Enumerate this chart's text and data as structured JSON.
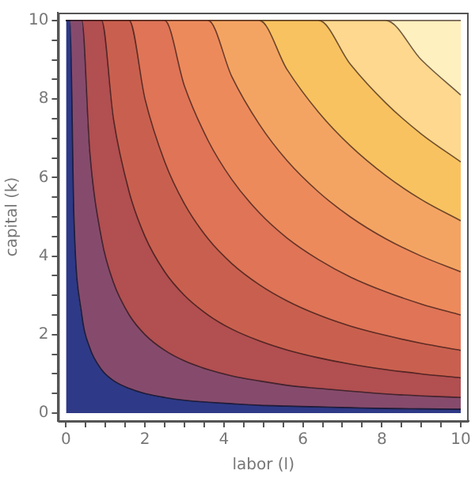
{
  "chart_data": {
    "type": "area",
    "stacked": true,
    "xlabel": "labor (l)",
    "ylabel": "capital (k)",
    "xlim": [
      -0.2,
      10.2
    ],
    "ylim": [
      -0.2,
      10.2
    ],
    "xticks": [
      0,
      {
        "value": 0.5,
        "label": null
      },
      {
        "value": 1,
        "label": null
      },
      {
        "value": 1.5,
        "label": null
      },
      2,
      {
        "value": 2.5,
        "label": null
      },
      {
        "value": 3,
        "label": null
      },
      {
        "value": 3.5,
        "label": null
      },
      4,
      {
        "value": 4.5,
        "label": null
      },
      {
        "value": 5,
        "label": null
      },
      {
        "value": 5.5,
        "label": null
      },
      6,
      {
        "value": 6.5,
        "label": null
      },
      {
        "value": 7,
        "label": null
      },
      {
        "value": 7.5,
        "label": null
      },
      8,
      {
        "value": 8.5,
        "label": null
      },
      {
        "value": 9,
        "label": null
      },
      {
        "value": 9.5,
        "label": null
      },
      10
    ],
    "yticks": [
      0,
      {
        "value": 0.5,
        "label": null
      },
      {
        "value": 1,
        "label": null
      },
      {
        "value": 1.5,
        "label": null
      },
      2,
      {
        "value": 2.5,
        "label": null
      },
      {
        "value": 3,
        "label": null
      },
      {
        "value": 3.5,
        "label": null
      },
      4,
      {
        "value": 4.5,
        "label": null
      },
      {
        "value": 5,
        "label": null
      },
      {
        "value": 5.5,
        "label": null
      },
      6,
      {
        "value": 6.5,
        "label": null
      },
      {
        "value": 7,
        "label": null
      },
      {
        "value": 7.5,
        "label": null
      },
      8,
      {
        "value": 8.5,
        "label": null
      },
      {
        "value": 9,
        "label": null
      },
      {
        "value": 9.5,
        "label": null
      },
      10
    ],
    "x": [
      0,
      0.1,
      0.2,
      0.4,
      0.6,
      0.9,
      1.2,
      1.6,
      2,
      2.5,
      3,
      3.6,
      4.2,
      4.9,
      5.6,
      6.4,
      7.2,
      8.1,
      9,
      10
    ],
    "series": [
      {
        "color": "#2e3a87",
        "values": [
          10,
          10,
          5,
          2.5,
          1.67,
          1.11,
          0.83,
          0.63,
          0.5,
          0.4,
          0.33,
          0.28,
          0.24,
          0.2,
          0.18,
          0.16,
          0.14,
          0.12,
          0.11,
          0.1
        ]
      },
      {
        "color": "#864b6c",
        "values": [
          0,
          0,
          5,
          7.5,
          5,
          3.33,
          2.5,
          1.87,
          1.5,
          1.2,
          1,
          0.83,
          0.71,
          0.62,
          0.53,
          0.47,
          0.42,
          0.37,
          0.33,
          0.3
        ]
      },
      {
        "color": "#b14f51",
        "values": [
          0,
          0,
          0,
          0,
          3.33,
          5.56,
          4.17,
          3.13,
          2.5,
          2,
          1.67,
          1.39,
          1.19,
          1.02,
          0.9,
          0.78,
          0.69,
          0.62,
          0.56,
          0.5
        ]
      },
      {
        "color": "#c9604f",
        "values": [
          0,
          0,
          0,
          0,
          0,
          0,
          2.5,
          4.37,
          3.5,
          2.8,
          2.33,
          1.94,
          1.67,
          1.43,
          1.25,
          1.09,
          0.97,
          0.87,
          0.78,
          0.7
        ]
      },
      {
        "color": "#df7457",
        "values": [
          0,
          0,
          0,
          0,
          0,
          0,
          0,
          0,
          2,
          3.6,
          3,
          2.5,
          2.14,
          1.83,
          1.6,
          1.41,
          1.25,
          1.11,
          1,
          0.9
        ]
      },
      {
        "color": "#ed8a5c",
        "values": [
          0,
          0,
          0,
          0,
          0,
          0,
          0,
          0,
          0,
          0,
          1.67,
          3.06,
          2.62,
          2.25,
          1.97,
          1.72,
          1.53,
          1.35,
          1.22,
          1.1
        ]
      },
      {
        "color": "#f4a462",
        "values": [
          0,
          0,
          0,
          0,
          0,
          0,
          0,
          0,
          0,
          0,
          0,
          0,
          1.43,
          2.65,
          2.32,
          2.03,
          1.81,
          1.61,
          1.44,
          1.3
        ]
      },
      {
        "color": "#f9c260",
        "values": [
          0,
          0,
          0,
          0,
          0,
          0,
          0,
          0,
          0,
          0,
          0,
          0,
          0,
          0,
          1.25,
          2.34,
          2.08,
          1.85,
          1.67,
          1.5
        ]
      },
      {
        "color": "#fdd88e",
        "values": [
          0,
          0,
          0,
          0,
          0,
          0,
          0,
          0,
          0,
          0,
          0,
          0,
          0,
          0,
          0,
          0,
          1.11,
          2.1,
          1.89,
          1.7
        ]
      },
      {
        "color": "#fff0bf",
        "values": [
          0,
          0,
          0,
          0,
          0,
          0,
          0,
          0,
          0,
          0,
          0,
          0,
          0,
          0,
          0,
          0,
          0,
          0,
          1,
          1.9
        ]
      }
    ]
  }
}
